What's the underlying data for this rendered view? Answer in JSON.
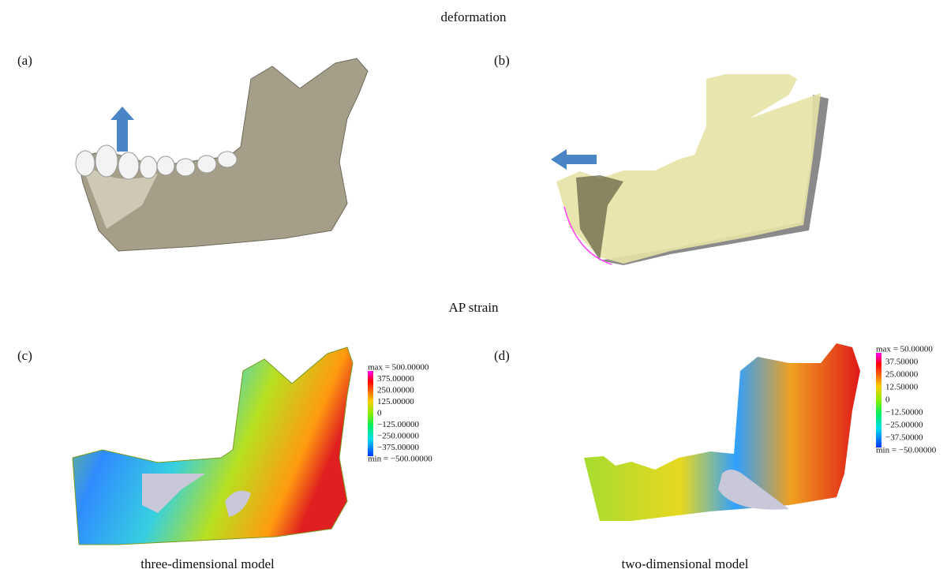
{
  "figure": {
    "top_title": "deformation",
    "bottom_title": "AP strain",
    "panels": [
      {
        "label": "(a)"
      },
      {
        "label": "(b)"
      },
      {
        "label": "(c)"
      },
      {
        "label": "(d)"
      }
    ],
    "colorbars": [
      {
        "labels": [
          "max = 500.00000",
          "375.00000",
          "250.00000",
          "125.00000",
          "0",
          "−125.00000",
          "−250.00000",
          "−375.00000",
          "min = −500.00000"
        ]
      },
      {
        "labels": [
          "max = 50.00000",
          "37.50000",
          "25.00000",
          "12.50000",
          "0",
          "−12.50000",
          "−25.00000",
          "−37.50000",
          "min = −50.00000"
        ]
      }
    ],
    "captions": [
      "three-dimensional model",
      "two-dimensional model"
    ]
  }
}
